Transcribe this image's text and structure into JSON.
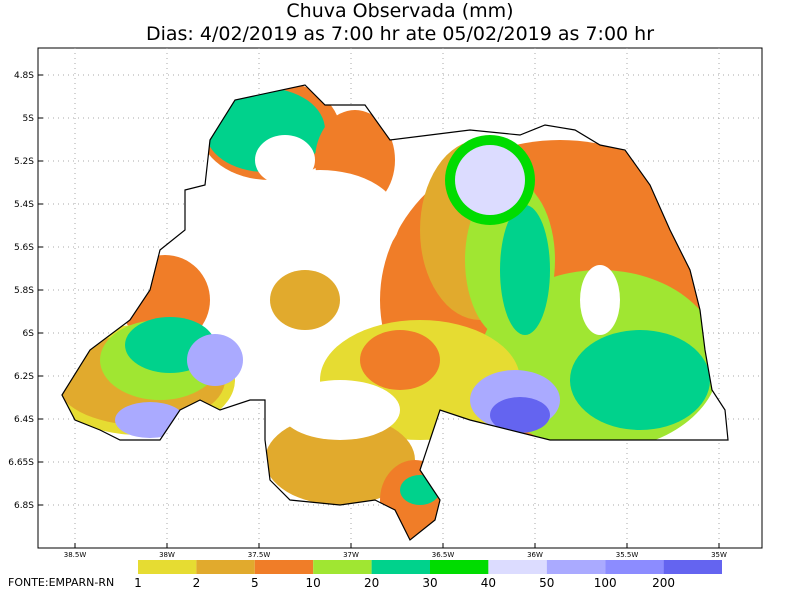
{
  "header": {
    "title": "Chuva Observada (mm)",
    "subtitle": "Dias: 4/02/2019 as 7:00 hr ate 05/02/2019 as 7:00 hr"
  },
  "map": {
    "lat_labels": [
      "4.8S",
      "5S",
      "5.2S",
      "5.4S",
      "5.6S",
      "5.8S",
      "6S",
      "6.2S",
      "6.4S",
      "6.65S",
      "6.8S"
    ],
    "lon_labels": [
      "38.5W",
      "38W",
      "37.5W",
      "37W",
      "36.5W",
      "36W",
      "35.5W",
      "35W"
    ]
  },
  "legend": {
    "items": [
      {
        "label": "1",
        "color": "#e6dc32"
      },
      {
        "label": "2",
        "color": "#e1aa2d"
      },
      {
        "label": "5",
        "color": "#f07d28"
      },
      {
        "label": "10",
        "color": "#a0e632"
      },
      {
        "label": "20",
        "color": "#00d28c"
      },
      {
        "label": "30",
        "color": "#00dc00"
      },
      {
        "label": "40",
        "color": "#dcdcff"
      },
      {
        "label": "50",
        "color": "#aaaaff"
      },
      {
        "label": "100",
        "color": "#8c8cff"
      },
      {
        "label": "200",
        "color": "#6464f0"
      }
    ]
  },
  "footer": {
    "source": "FONTE:EMPARN-RN"
  }
}
